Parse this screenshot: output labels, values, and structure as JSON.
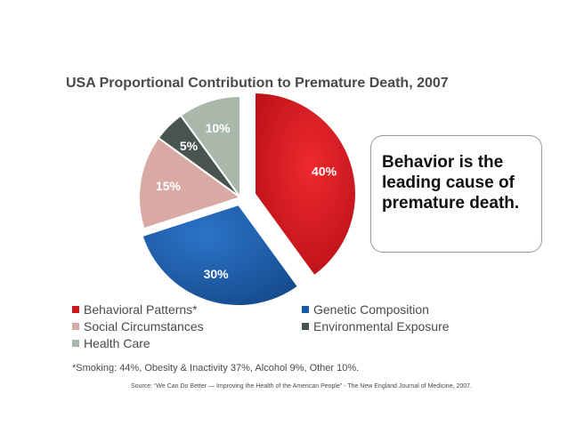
{
  "chart_data": {
    "type": "pie",
    "title": "USA Proportional Contribution to Premature Death, 2007",
    "slices": [
      {
        "label": "Behavioral Patterns*",
        "value": 40,
        "display": "40%",
        "color": "#d0141c",
        "exploded": true
      },
      {
        "label": "Genetic Composition",
        "value": 30,
        "display": "30%",
        "color": "#1b5aa8",
        "exploded": true
      },
      {
        "label": "Social Circumstances",
        "value": 15,
        "display": "15%",
        "color": "#d9aaa4",
        "exploded": false
      },
      {
        "label": "Environmental Exposure",
        "value": 5,
        "display": "5%",
        "color": "#485450",
        "exploded": false
      },
      {
        "label": "Health Care",
        "value": 10,
        "display": "10%",
        "color": "#aab8ab",
        "exploded": false
      }
    ],
    "start_angle": "12 o'clock",
    "direction": "clockwise",
    "legend_position": "bottom"
  },
  "callout": {
    "text": "Behavior is the leading cause of premature death."
  },
  "legend": {
    "behavioral": "Behavioral Patterns*",
    "genetic": "Genetic Composition",
    "social": "Social Circumstances",
    "environmental": "Environmental Exposure",
    "health": "Health Care"
  },
  "footnote": "*Smoking: 44%, Obesity & Inactivity 37%, Alcohol 9%, Other 10%.",
  "source": "Source: “We Can Do Better — Improving the Health of the American People” - The New England Journal of Medicine, 2007.",
  "colors": {
    "behavioral": "#d0141c",
    "genetic": "#1b5aa8",
    "social": "#d9aaa4",
    "environmental": "#485450",
    "health": "#aab8ab"
  }
}
